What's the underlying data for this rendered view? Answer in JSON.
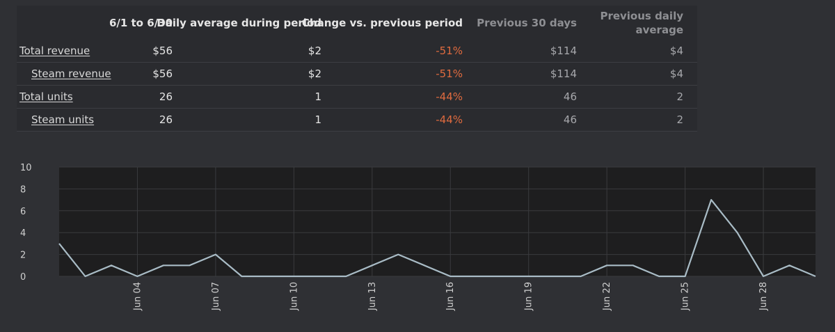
{
  "table": {
    "headers": [
      "",
      "6/1 to 6/30",
      "Daily average during period",
      "Change vs. previous period",
      "Previous 30 days",
      "Previous daily average"
    ],
    "rows": [
      {
        "label": "Total revenue",
        "period": "$56",
        "daily_avg": "$2",
        "change": "-51%",
        "prev30": "$114",
        "prev_daily": "$4"
      },
      {
        "label": "Steam revenue",
        "period": "$56",
        "daily_avg": "$2",
        "change": "-51%",
        "prev30": "$114",
        "prev_daily": "$4"
      },
      {
        "label": "Total units",
        "period": "26",
        "daily_avg": "1",
        "change": "-44%",
        "prev30": "46",
        "prev_daily": "2"
      },
      {
        "label": "Steam units",
        "period": "26",
        "daily_avg": "1",
        "change": "-44%",
        "prev30": "46",
        "prev_daily": "2"
      }
    ]
  },
  "colors": {
    "background": "#2f3034",
    "plot_background": "#1e1e1f",
    "line": "#a9bcc6",
    "negative_change": "#e06b3f",
    "muted_header": "#8e8f93"
  },
  "chart_data": {
    "type": "line",
    "x": [
      "Jun 01",
      "Jun 02",
      "Jun 03",
      "Jun 04",
      "Jun 05",
      "Jun 06",
      "Jun 07",
      "Jun 08",
      "Jun 09",
      "Jun 10",
      "Jun 11",
      "Jun 12",
      "Jun 13",
      "Jun 14",
      "Jun 15",
      "Jun 16",
      "Jun 17",
      "Jun 18",
      "Jun 19",
      "Jun 20",
      "Jun 21",
      "Jun 22",
      "Jun 23",
      "Jun 24",
      "Jun 25",
      "Jun 26",
      "Jun 27",
      "Jun 28",
      "Jun 29",
      "Jun 30"
    ],
    "series": [
      {
        "values": [
          3,
          0,
          1,
          0,
          1,
          1,
          2,
          0,
          0,
          0,
          0,
          0,
          1,
          2,
          1,
          0,
          0,
          0,
          0,
          0,
          0,
          1,
          1,
          0,
          0,
          7,
          4,
          0,
          1,
          0
        ]
      }
    ],
    "xticks": [
      "Jun 04",
      "Jun 07",
      "Jun 10",
      "Jun 13",
      "Jun 16",
      "Jun 19",
      "Jun 22",
      "Jun 25",
      "Jun 28"
    ],
    "yticks": [
      "0",
      "2",
      "4",
      "6",
      "8",
      "10"
    ],
    "ylim": [
      0,
      10
    ],
    "grid": true,
    "title": "",
    "xlabel": "",
    "ylabel": ""
  }
}
